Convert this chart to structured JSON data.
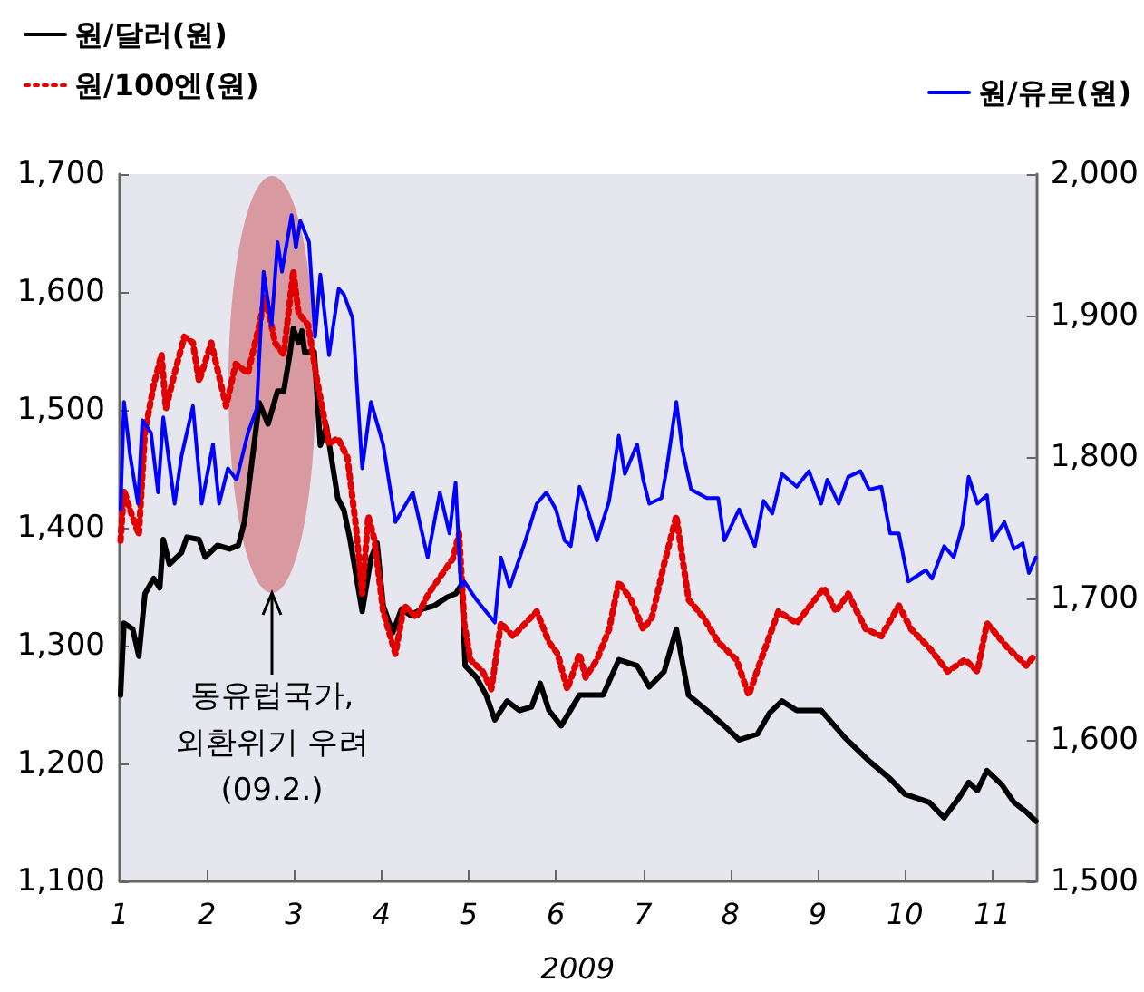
{
  "chart_data": {
    "type": "line",
    "xlabel": "2009",
    "xlim": [
      1,
      11.5
    ],
    "xticks": [
      1,
      2,
      3,
      4,
      5,
      6,
      7,
      8,
      9,
      10,
      11
    ],
    "ylim": [
      1100,
      1700
    ],
    "yticks": [
      {
        "value": 1100,
        "label": "1,100"
      },
      {
        "value": 1200,
        "label": "1,200"
      },
      {
        "value": 1300,
        "label": "1,300"
      },
      {
        "value": 1400,
        "label": "1,400"
      },
      {
        "value": 1500,
        "label": "1,500"
      },
      {
        "value": 1600,
        "label": "1,600"
      },
      {
        "value": 1700,
        "label": "1,700"
      }
    ],
    "y2lim": [
      1500,
      2000
    ],
    "y2ticks": [
      {
        "value": 1500,
        "label": "1,500"
      },
      {
        "value": 1600,
        "label": "1,600"
      },
      {
        "value": 1700,
        "label": "1,700"
      },
      {
        "value": 1800,
        "label": "1,800"
      },
      {
        "value": 1900,
        "label": "1,900"
      },
      {
        "value": 2000,
        "label": "2,000"
      }
    ],
    "grid": false,
    "legend": "top",
    "annotations": [
      "동유럽국가,\n외환위기 우려\n(09.2.)"
    ],
    "series": [
      {
        "name": "원/달러(원)",
        "color": "#000000",
        "line_style": "solid",
        "x": [
          1.01,
          1.05,
          1.15,
          1.22,
          1.29,
          1.39,
          1.46,
          1.5,
          1.57,
          1.71,
          1.77,
          1.91,
          1.98,
          2.12,
          2.26,
          2.36,
          2.43,
          2.6,
          2.7,
          2.81,
          2.88,
          2.95,
          2.99,
          3.05,
          3.09,
          3.12,
          3.23,
          3.3,
          3.37,
          3.5,
          3.57,
          3.64,
          3.78,
          3.88,
          3.95,
          4.02,
          4.13,
          4.23,
          4.33,
          4.47,
          4.61,
          4.75,
          4.85,
          4.92,
          4.96,
          5.09,
          5.2,
          5.3,
          5.44,
          5.58,
          5.72,
          5.82,
          5.92,
          6.06,
          6.27,
          6.54,
          6.72,
          6.93,
          7.07,
          7.24,
          7.38,
          7.52,
          7.73,
          7.93,
          8.1,
          8.31,
          8.45,
          8.59,
          8.76,
          9.04,
          9.31,
          9.59,
          9.83,
          10.0,
          10.28,
          10.45,
          10.63,
          10.73,
          10.83,
          10.94,
          11.11,
          11.25,
          11.39,
          11.5
        ],
        "values": [
          1258,
          1319,
          1314,
          1291,
          1344,
          1357,
          1349,
          1390,
          1369,
          1379,
          1392,
          1390,
          1375,
          1385,
          1382,
          1385,
          1405,
          1506,
          1488,
          1516,
          1516,
          1547,
          1569,
          1557,
          1567,
          1549,
          1549,
          1470,
          1486,
          1425,
          1415,
          1390,
          1329,
          1374,
          1387,
          1334,
          1311,
          1331,
          1326,
          1331,
          1334,
          1341,
          1344,
          1352,
          1283,
          1273,
          1258,
          1237,
          1253,
          1245,
          1248,
          1268,
          1245,
          1232,
          1258,
          1258,
          1288,
          1283,
          1265,
          1278,
          1314,
          1258,
          1245,
          1232,
          1220,
          1225,
          1243,
          1253,
          1245,
          1245,
          1222,
          1202,
          1187,
          1174,
          1167,
          1154,
          1172,
          1184,
          1177,
          1194,
          1182,
          1167,
          1159,
          1151
        ]
      },
      {
        "name": "원/100엔(원)",
        "color": "#e00000",
        "line_style": "dotted",
        "x": [
          1.01,
          1.05,
          1.12,
          1.22,
          1.29,
          1.39,
          1.48,
          1.53,
          1.63,
          1.74,
          1.84,
          1.91,
          2.05,
          2.22,
          2.33,
          2.47,
          2.6,
          2.67,
          2.78,
          2.88,
          2.99,
          3.05,
          3.16,
          3.26,
          3.4,
          3.5,
          3.61,
          3.71,
          3.78,
          3.85,
          3.92,
          4.02,
          4.16,
          4.26,
          4.4,
          4.54,
          4.68,
          4.82,
          4.89,
          4.95,
          5.02,
          5.16,
          5.26,
          5.37,
          5.51,
          5.65,
          5.78,
          5.92,
          6.02,
          6.13,
          6.27,
          6.34,
          6.47,
          6.61,
          6.72,
          6.86,
          7.0,
          7.1,
          7.24,
          7.38,
          7.52,
          7.69,
          7.86,
          8.07,
          8.21,
          8.35,
          8.55,
          8.76,
          9.07,
          9.21,
          9.35,
          9.55,
          9.73,
          9.93,
          10.07,
          10.28,
          10.49,
          10.69,
          10.83,
          10.94,
          11.18,
          11.39,
          11.5
        ],
        "values": [
          1389,
          1432,
          1415,
          1394,
          1481,
          1521,
          1547,
          1501,
          1531,
          1562,
          1557,
          1524,
          1557,
          1503,
          1539,
          1531,
          1572,
          1597,
          1557,
          1547,
          1618,
          1582,
          1572,
          1526,
          1471,
          1476,
          1460,
          1400,
          1344,
          1410,
          1390,
          1329,
          1293,
          1334,
          1324,
          1344,
          1359,
          1374,
          1395,
          1319,
          1288,
          1278,
          1263,
          1319,
          1308,
          1319,
          1329,
          1303,
          1293,
          1263,
          1293,
          1273,
          1288,
          1314,
          1354,
          1339,
          1314,
          1324,
          1369,
          1410,
          1339,
          1324,
          1303,
          1288,
          1258,
          1288,
          1329,
          1319,
          1349,
          1329,
          1344,
          1314,
          1308,
          1334,
          1314,
          1298,
          1278,
          1288,
          1278,
          1319,
          1298,
          1283,
          1293
        ]
      },
      {
        "name": "원/유로(원)",
        "color": "#0000ff",
        "line_style": "solid",
        "axis": "y2",
        "x": [
          1.01,
          1.05,
          1.12,
          1.21,
          1.26,
          1.36,
          1.44,
          1.5,
          1.63,
          1.71,
          1.84,
          1.94,
          2.07,
          2.14,
          2.24,
          2.34,
          2.47,
          2.57,
          2.65,
          2.74,
          2.81,
          2.86,
          2.97,
          3.02,
          3.07,
          3.17,
          3.24,
          3.3,
          3.4,
          3.51,
          3.57,
          3.67,
          3.78,
          3.88,
          4.02,
          4.16,
          4.36,
          4.53,
          4.67,
          4.78,
          4.85,
          4.91,
          4.95,
          5.09,
          5.3,
          5.37,
          5.47,
          5.65,
          5.78,
          5.89,
          6.0,
          6.1,
          6.17,
          6.27,
          6.34,
          6.47,
          6.61,
          6.72,
          6.79,
          6.93,
          7.0,
          7.07,
          7.21,
          7.27,
          7.38,
          7.45,
          7.55,
          7.73,
          7.86,
          7.93,
          8.1,
          8.28,
          8.38,
          8.48,
          8.59,
          8.76,
          8.9,
          9.04,
          9.11,
          9.24,
          9.35,
          9.49,
          9.59,
          9.73,
          9.83,
          9.93,
          10.04,
          10.24,
          10.31,
          10.45,
          10.56,
          10.66,
          10.73,
          10.83,
          10.94,
          11.0,
          11.14,
          11.25,
          11.35,
          11.42,
          11.5
        ],
        "values": [
          1763,
          1839,
          1801,
          1767,
          1826,
          1817,
          1775,
          1828,
          1767,
          1801,
          1836,
          1767,
          1809,
          1767,
          1792,
          1784,
          1817,
          1834,
          1931,
          1893,
          1952,
          1931,
          1971,
          1948,
          1967,
          1952,
          1885,
          1929,
          1872,
          1919,
          1915,
          1898,
          1792,
          1839,
          1809,
          1754,
          1775,
          1729,
          1775,
          1746,
          1782,
          1708,
          1712,
          1699,
          1683,
          1729,
          1708,
          1741,
          1767,
          1775,
          1763,
          1741,
          1737,
          1779,
          1767,
          1741,
          1769,
          1815,
          1788,
          1809,
          1784,
          1767,
          1771,
          1792,
          1839,
          1805,
          1777,
          1771,
          1771,
          1741,
          1763,
          1737,
          1769,
          1760,
          1788,
          1779,
          1790,
          1767,
          1784,
          1767,
          1786,
          1790,
          1777,
          1779,
          1746,
          1746,
          1712,
          1720,
          1714,
          1737,
          1729,
          1752,
          1786,
          1767,
          1773,
          1741,
          1754,
          1735,
          1739,
          1718,
          1729
        ]
      }
    ]
  }
}
